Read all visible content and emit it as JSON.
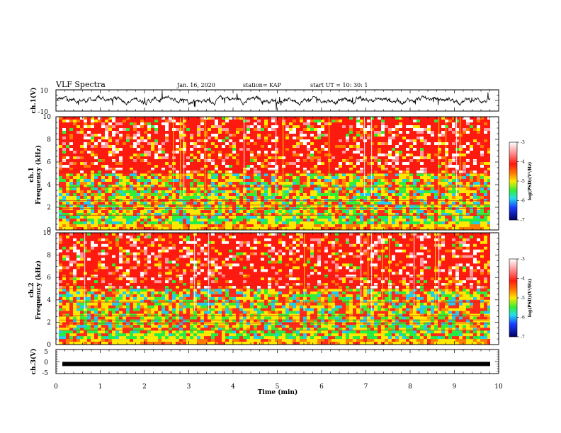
{
  "header": {
    "title": "VLF Spectra",
    "date": "Jan. 16, 2020",
    "station": "station= KAP",
    "start": "start  UT =   10: 30: 1"
  },
  "chart_data": [
    {
      "type": "line",
      "name": "ch1-waveform",
      "ylabel": "ch.1(V)",
      "ylim": [
        -10,
        10
      ],
      "yticks": [
        "10",
        "-10"
      ],
      "xlim": [
        0,
        10
      ]
    },
    {
      "type": "heatmap",
      "name": "ch1-spectrogram",
      "ylabel": "ch.1\nFrequency (kHz)",
      "ylabel_top": "ch.1",
      "ylabel_bottom": "Frequency (kHz)",
      "ylim": [
        0,
        10
      ],
      "yticks": [
        "0",
        "2",
        "4",
        "6",
        "8",
        "10"
      ],
      "xlim": [
        0,
        10
      ],
      "colorbar": {
        "label": "log(PSD)(V²/Hz)",
        "range": [
          -7,
          -3
        ],
        "ticks": [
          "-3",
          "-4",
          "-5",
          "-6",
          "-7"
        ]
      }
    },
    {
      "type": "heatmap",
      "name": "ch2-spectrogram",
      "ylabel_top": "ch.2",
      "ylabel_bottom": "Frequency (kHz)",
      "ylim": [
        0,
        10
      ],
      "yticks": [
        "0",
        "2",
        "4",
        "6",
        "8",
        "10"
      ],
      "xlim": [
        0,
        10
      ],
      "colorbar": {
        "label": "log(PSD)(V²/Hz)",
        "range": [
          -7,
          -3
        ],
        "ticks": [
          "-3",
          "-4",
          "-5",
          "-6",
          "-7"
        ]
      }
    },
    {
      "type": "line",
      "name": "ch3-waveform",
      "ylabel": "ch.3(V)",
      "ylim": [
        -5,
        5
      ],
      "yticks": [
        "5",
        "0",
        "-5"
      ],
      "xlim": [
        0,
        10
      ],
      "level": -1
    }
  ],
  "xaxis": {
    "label": "Time (min)",
    "ticks": [
      "0",
      "1",
      "2",
      "3",
      "4",
      "5",
      "6",
      "7",
      "8",
      "9",
      "10"
    ]
  },
  "colors": {
    "trace": "#000000",
    "hot": "#ff2a1a",
    "warm": "#ffd200",
    "cool": "#33ee33",
    "cold": "#1a2cff"
  }
}
